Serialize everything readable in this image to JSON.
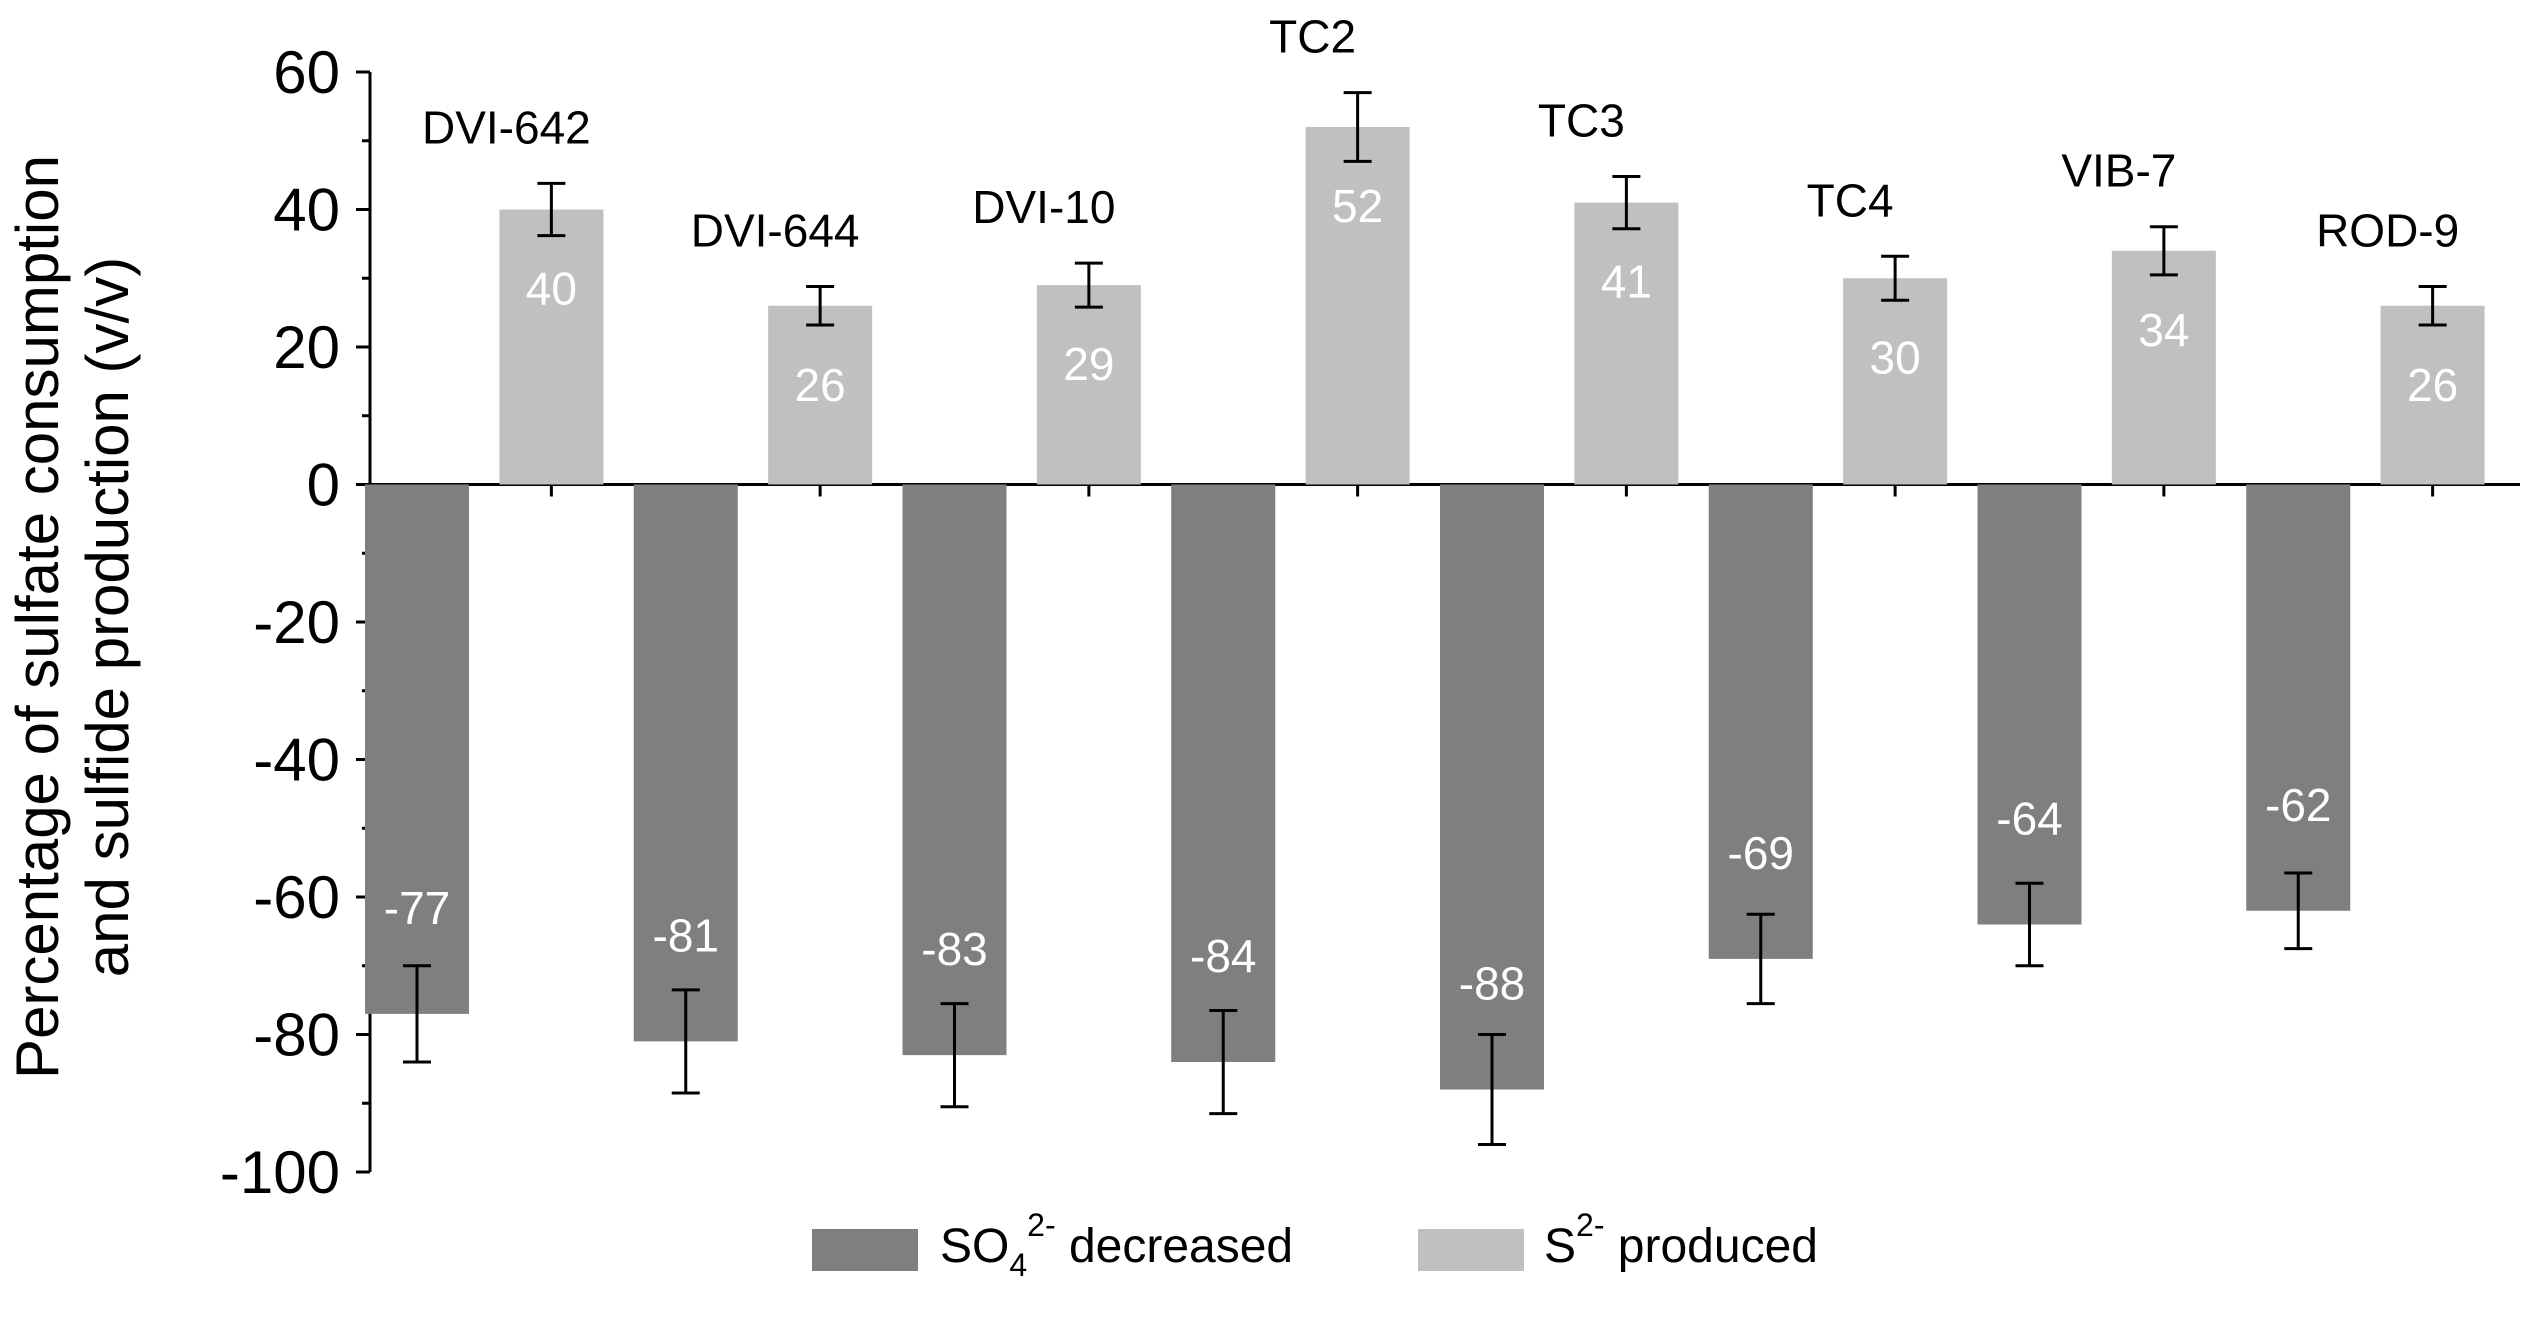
{
  "chart_data": {
    "type": "bar",
    "title": "",
    "xlabel": "",
    "ylabel_line1": "Percentage of sulfate consumption",
    "ylabel_line2": "and sulfide production (v/v)",
    "ylim": [
      -100,
      60
    ],
    "yticks": [
      60,
      40,
      20,
      0,
      -20,
      -40,
      -60,
      -80,
      -100
    ],
    "grid": false,
    "legend_position": "bottom",
    "categories": [
      "DVI-642",
      "DVI-644",
      "DVI-10",
      "TC2",
      "TC3",
      "TC4",
      "VIB-7",
      "ROD-9"
    ],
    "series": [
      {
        "name": "SO4 2- decreased",
        "legend_main": "SO",
        "legend_sub": "4",
        "legend_sup": "2-",
        "legend_rest": " decreased",
        "color": "#7f7f7f",
        "values": [
          -77,
          -81,
          -83,
          -84,
          -88,
          -69,
          -64,
          -62
        ],
        "labels": [
          "-77",
          "-81",
          "-83",
          "-84",
          "-88",
          "-69",
          "-64",
          "-62"
        ],
        "errors": [
          7,
          7.5,
          7.5,
          7.5,
          8,
          6.5,
          6,
          5.5
        ]
      },
      {
        "name": "S2- produced",
        "legend_main": "S",
        "legend_sup": "2-",
        "legend_rest": " produced",
        "color": "#c0c0c0",
        "values": [
          40,
          26,
          29,
          52,
          41,
          30,
          34,
          26
        ],
        "labels": [
          "40",
          "26",
          "29",
          "52",
          "41",
          "30",
          "34",
          "26"
        ],
        "errors": [
          3.8,
          2.8,
          3.2,
          5,
          3.8,
          3.2,
          3.5,
          2.8
        ]
      }
    ]
  }
}
